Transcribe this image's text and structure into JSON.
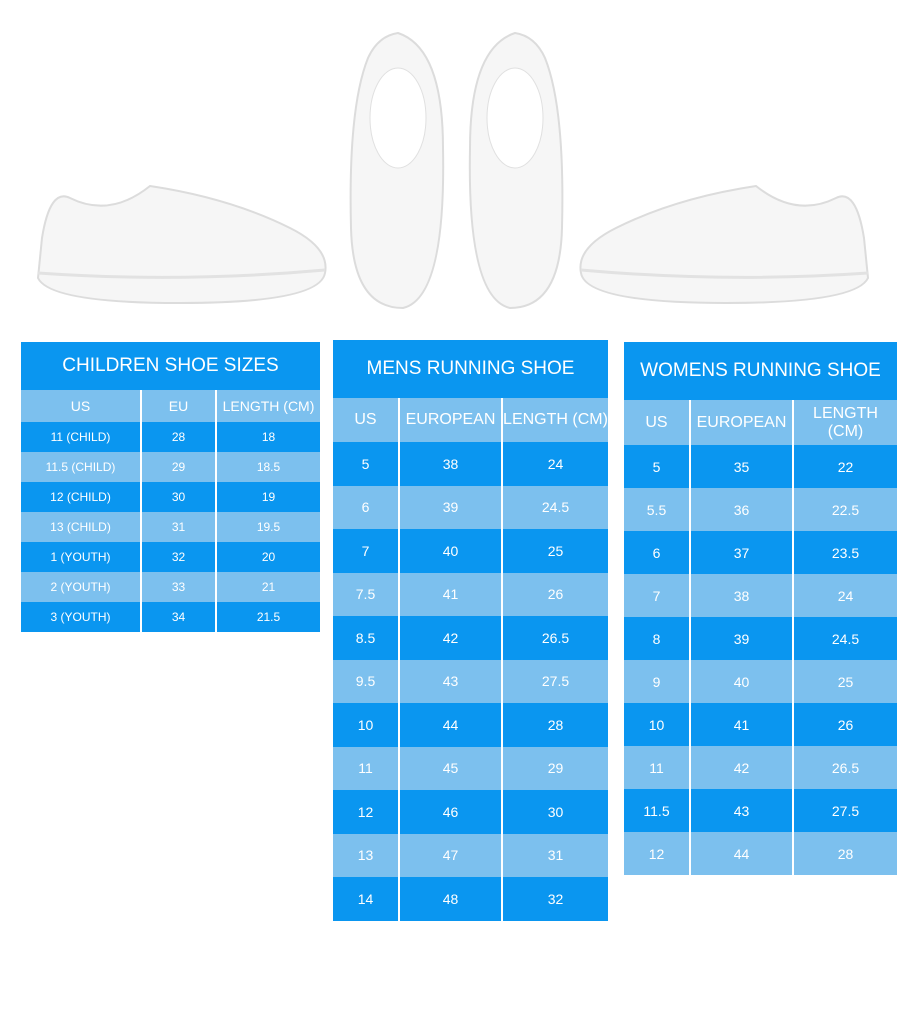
{
  "colors": {
    "dark_row": "#0a96f0",
    "light_row": "#7cc0ee",
    "text": "#ffffff"
  },
  "images": [
    "shoe-side-left",
    "shoe-top-left",
    "shoe-top-right",
    "shoe-side-right"
  ],
  "children": {
    "title": "CHILDREN SHOE SIZES",
    "headers": [
      "US",
      "EU",
      "LENGTH (CM)"
    ],
    "rows": [
      [
        "11 (CHILD)",
        "28",
        "18"
      ],
      [
        "11.5 (CHILD)",
        "29",
        "18.5"
      ],
      [
        "12 (CHILD)",
        "30",
        "19"
      ],
      [
        "13 (CHILD)",
        "31",
        "19.5"
      ],
      [
        "1 (YOUTH)",
        "32",
        "20"
      ],
      [
        "2 (YOUTH)",
        "33",
        "21"
      ],
      [
        "3 (YOUTH)",
        "34",
        "21.5"
      ]
    ]
  },
  "mens": {
    "title": "MENS RUNNING SHOE",
    "headers": [
      "US",
      "EUROPEAN",
      "LENGTH (CM)"
    ],
    "rows": [
      [
        "5",
        "38",
        "24"
      ],
      [
        "6",
        "39",
        "24.5"
      ],
      [
        "7",
        "40",
        "25"
      ],
      [
        "7.5",
        "41",
        "26"
      ],
      [
        "8.5",
        "42",
        "26.5"
      ],
      [
        "9.5",
        "43",
        "27.5"
      ],
      [
        "10",
        "44",
        "28"
      ],
      [
        "11",
        "45",
        "29"
      ],
      [
        "12",
        "46",
        "30"
      ],
      [
        "13",
        "47",
        "31"
      ],
      [
        "14",
        "48",
        "32"
      ]
    ]
  },
  "womens": {
    "title": "WOMENS RUNNING SHOE",
    "headers": [
      "US",
      "EUROPEAN",
      "LENGTH (CM)"
    ],
    "rows": [
      [
        "5",
        "35",
        "22"
      ],
      [
        "5.5",
        "36",
        "22.5"
      ],
      [
        "6",
        "37",
        "23.5"
      ],
      [
        "7",
        "38",
        "24"
      ],
      [
        "8",
        "39",
        "24.5"
      ],
      [
        "9",
        "40",
        "25"
      ],
      [
        "10",
        "41",
        "26"
      ],
      [
        "11",
        "42",
        "26.5"
      ],
      [
        "11.5",
        "43",
        "27.5"
      ],
      [
        "12",
        "44",
        "28"
      ]
    ]
  }
}
